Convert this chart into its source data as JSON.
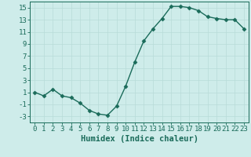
{
  "x": [
    0,
    1,
    2,
    3,
    4,
    5,
    6,
    7,
    8,
    9,
    10,
    11,
    12,
    13,
    14,
    15,
    16,
    17,
    18,
    19,
    20,
    21,
    22,
    23
  ],
  "y": [
    1.0,
    0.4,
    1.5,
    0.4,
    0.1,
    -0.8,
    -2.0,
    -2.6,
    -2.8,
    -1.3,
    2.0,
    6.0,
    9.5,
    11.5,
    13.2,
    15.2,
    15.2,
    15.0,
    14.5,
    13.5,
    13.2,
    13.0,
    13.0,
    11.5
  ],
  "line_color": "#1a6b5a",
  "marker": "D",
  "marker_size": 2.5,
  "linewidth": 1.0,
  "xlabel": "Humidex (Indice chaleur)",
  "xlim": [
    -0.5,
    23.5
  ],
  "ylim": [
    -4,
    16
  ],
  "yticks": [
    -3,
    -1,
    1,
    3,
    5,
    7,
    9,
    11,
    13,
    15
  ],
  "xticks": [
    0,
    1,
    2,
    3,
    4,
    5,
    6,
    7,
    8,
    9,
    10,
    11,
    12,
    13,
    14,
    15,
    16,
    17,
    18,
    19,
    20,
    21,
    22,
    23
  ],
  "background_color": "#ceecea",
  "grid_color": "#b8dbd8",
  "font_size": 6.5,
  "xlabel_fontsize": 7.5
}
